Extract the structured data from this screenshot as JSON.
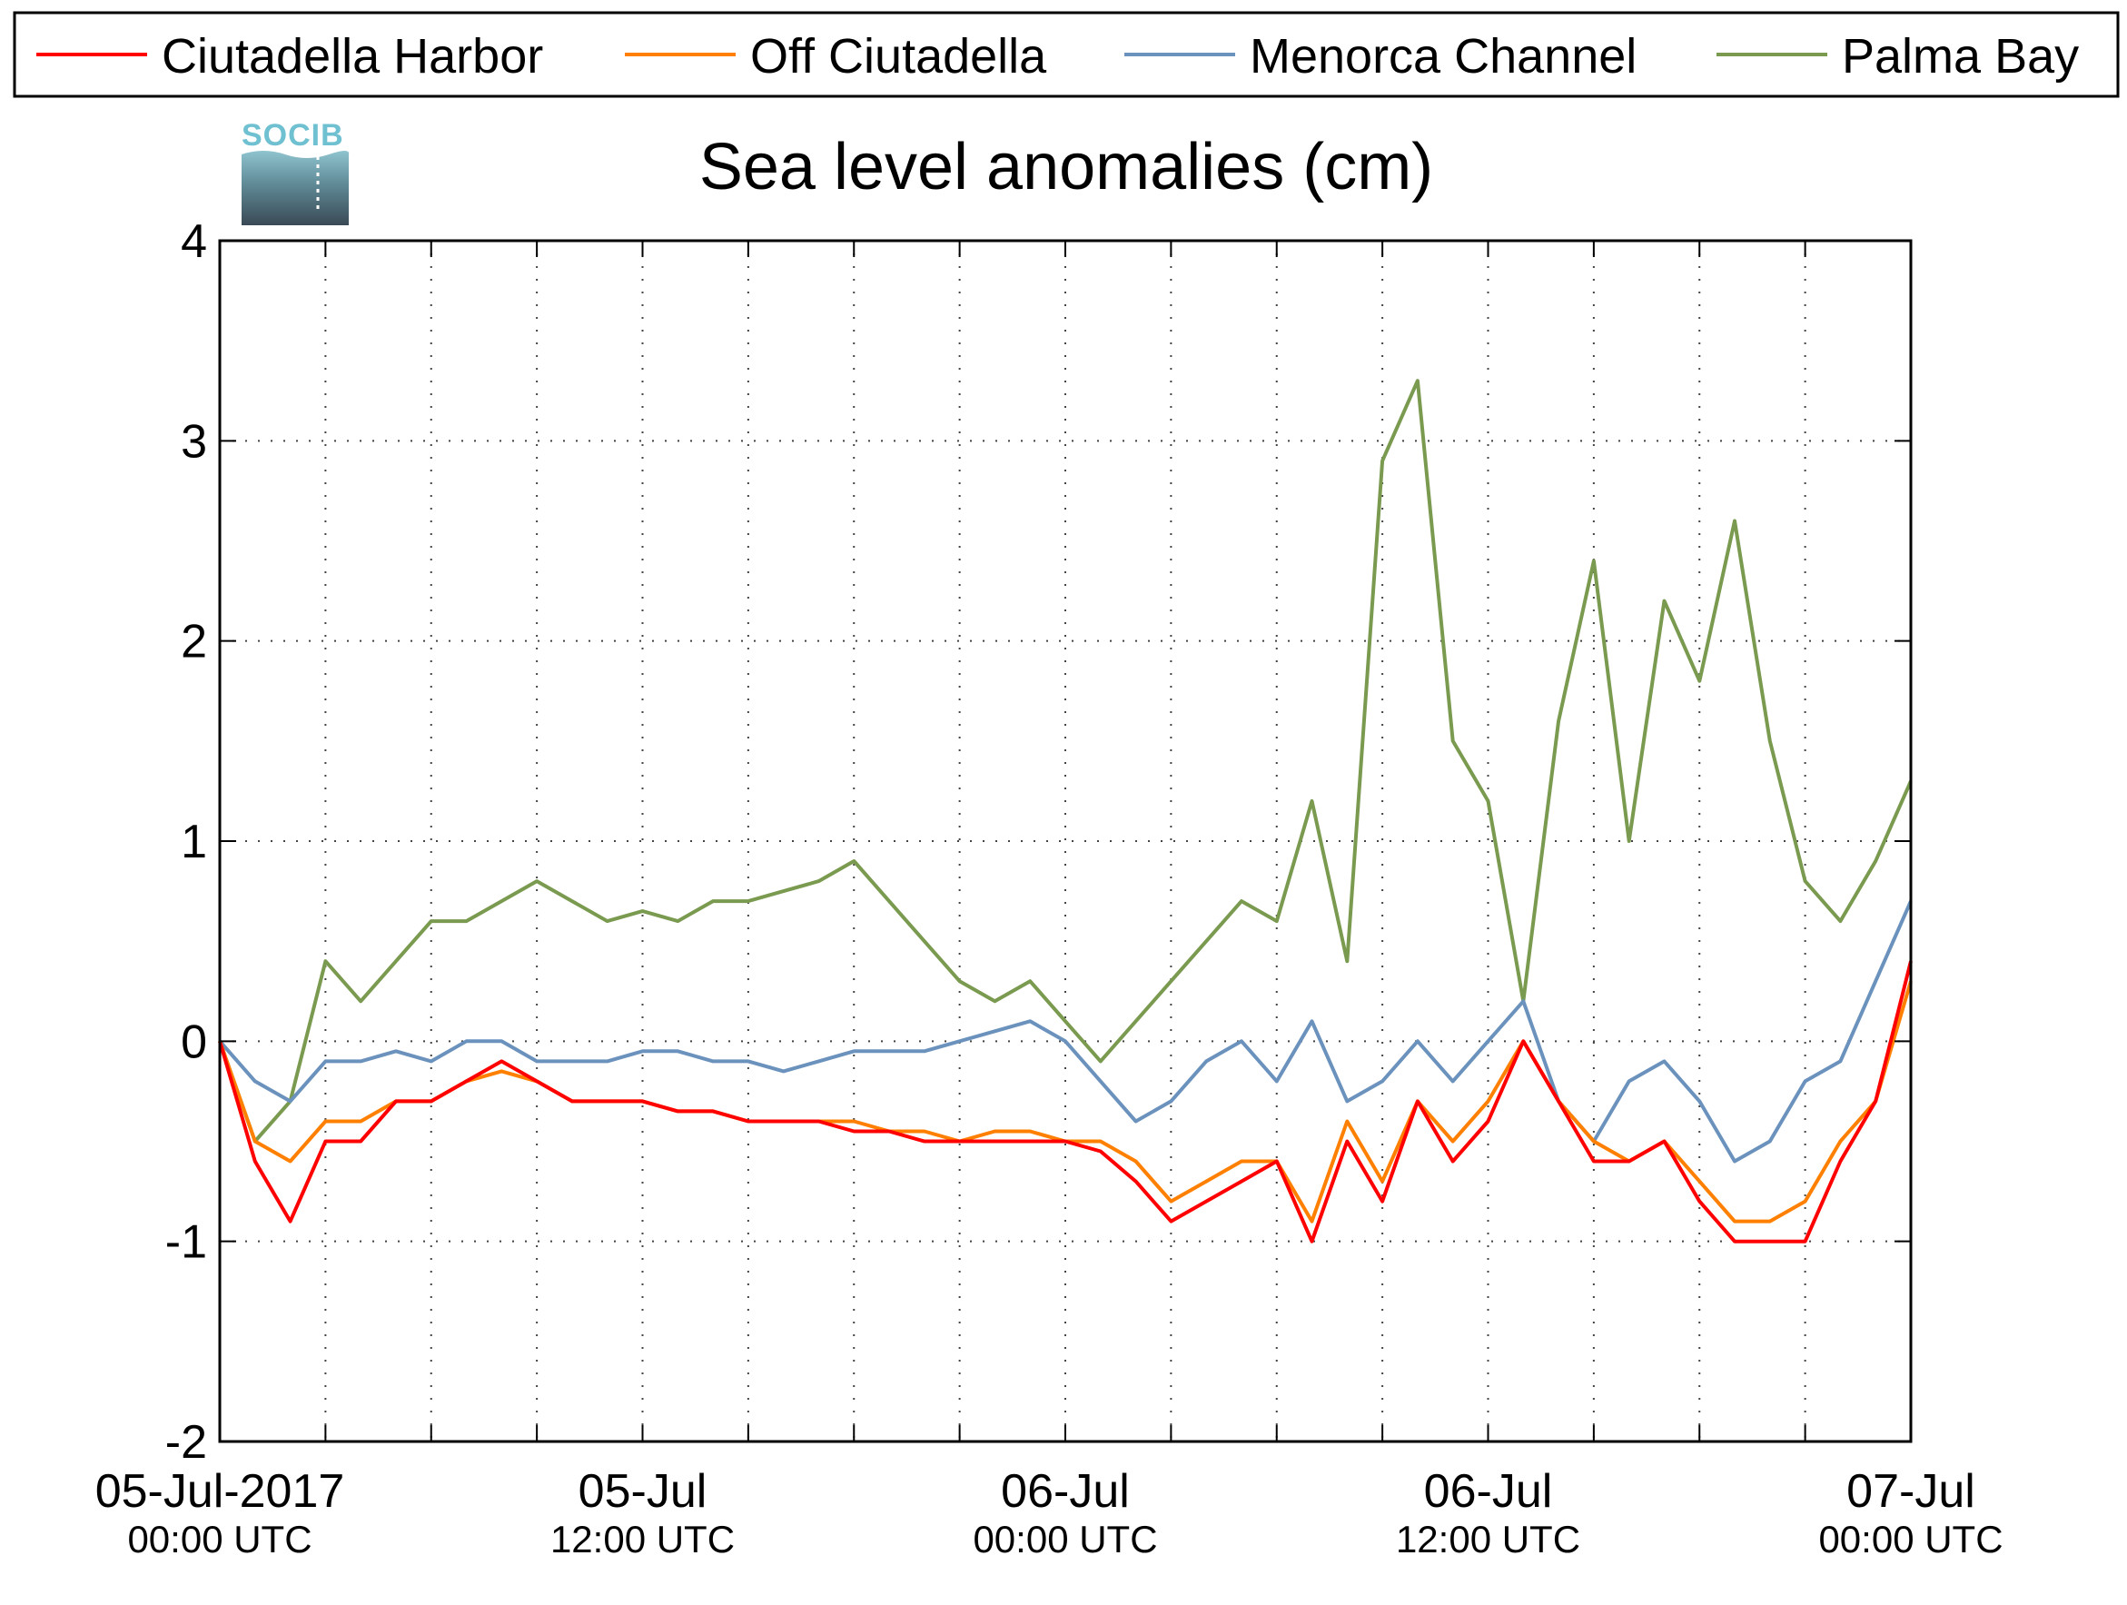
{
  "chart_data": {
    "type": "line",
    "title": "Sea level anomalies (cm)",
    "xlabel": "",
    "ylabel": "",
    "x_range": [
      "2017-07-05T00:00 UTC",
      "2017-07-07T00:00 UTC"
    ],
    "ylim": [
      -2,
      4
    ],
    "y_ticks": [
      4,
      3,
      2,
      1,
      0,
      -1,
      -2
    ],
    "y_tick_labels": [
      "4",
      "3",
      "2",
      "1",
      "0",
      "-1",
      "-2"
    ],
    "x_tick_labels": [
      {
        "main": "05-Jul-2017",
        "sub": "00:00 UTC"
      },
      {
        "main": "05-Jul",
        "sub": "12:00 UTC"
      },
      {
        "main": "06-Jul",
        "sub": "00:00 UTC"
      },
      {
        "main": "06-Jul",
        "sub": "12:00 UTC"
      },
      {
        "main": "07-Jul",
        "sub": "00:00 UTC"
      }
    ],
    "grid": true,
    "legend_position": "top",
    "x_hours": [
      0,
      1,
      2,
      3,
      4,
      5,
      6,
      7,
      8,
      9,
      10,
      11,
      12,
      13,
      14,
      15,
      16,
      17,
      18,
      19,
      20,
      21,
      22,
      23,
      24,
      25,
      26,
      27,
      28,
      29,
      30,
      31,
      32,
      33,
      34,
      35,
      36,
      37,
      38,
      39,
      40,
      41,
      42,
      43,
      44,
      45,
      46,
      47,
      48
    ],
    "series": [
      {
        "name": "Ciutadella Harbor",
        "color": "#ff0000",
        "values": [
          0.0,
          -0.6,
          -0.9,
          -0.5,
          -0.5,
          -0.3,
          -0.3,
          -0.2,
          -0.1,
          -0.2,
          -0.3,
          -0.3,
          -0.3,
          -0.35,
          -0.35,
          -0.4,
          -0.4,
          -0.4,
          -0.45,
          -0.45,
          -0.5,
          -0.5,
          -0.5,
          -0.5,
          -0.5,
          -0.55,
          -0.7,
          -0.9,
          -0.8,
          -0.7,
          -0.6,
          -1.0,
          -0.5,
          -0.8,
          -0.3,
          -0.6,
          -0.4,
          0.0,
          -0.3,
          -0.6,
          -0.6,
          -0.5,
          -0.8,
          -1.0,
          -1.0,
          -1.0,
          -0.6,
          -0.3,
          0.4
        ]
      },
      {
        "name": "Off Ciutadella",
        "color": "#ff8000",
        "values": [
          0.0,
          -0.5,
          -0.6,
          -0.4,
          -0.4,
          -0.3,
          -0.3,
          -0.2,
          -0.15,
          -0.2,
          -0.3,
          -0.3,
          -0.3,
          -0.35,
          -0.35,
          -0.4,
          -0.4,
          -0.4,
          -0.4,
          -0.45,
          -0.45,
          -0.5,
          -0.45,
          -0.45,
          -0.5,
          -0.5,
          -0.6,
          -0.8,
          -0.7,
          -0.6,
          -0.6,
          -0.9,
          -0.4,
          -0.7,
          -0.3,
          -0.5,
          -0.3,
          0.0,
          -0.3,
          -0.5,
          -0.6,
          -0.5,
          -0.7,
          -0.9,
          -0.9,
          -0.8,
          -0.5,
          -0.3,
          0.3
        ]
      },
      {
        "name": "Menorca Channel",
        "color": "#6a92bd",
        "values": [
          0.0,
          -0.2,
          -0.3,
          -0.1,
          -0.1,
          -0.05,
          -0.1,
          0.0,
          0.0,
          -0.1,
          -0.1,
          -0.1,
          -0.05,
          -0.05,
          -0.1,
          -0.1,
          -0.15,
          -0.1,
          -0.05,
          -0.05,
          -0.05,
          0.0,
          0.05,
          0.1,
          0.0,
          -0.2,
          -0.4,
          -0.3,
          -0.1,
          0.0,
          -0.2,
          0.1,
          -0.3,
          -0.2,
          0.0,
          -0.2,
          0.0,
          0.2,
          -0.3,
          -0.5,
          -0.2,
          -0.1,
          -0.3,
          -0.6,
          -0.5,
          -0.2,
          -0.1,
          0.3,
          0.7
        ]
      },
      {
        "name": "Palma Bay",
        "color": "#7a9a50",
        "values": [
          0.0,
          -0.5,
          -0.3,
          0.4,
          0.2,
          0.4,
          0.6,
          0.6,
          0.7,
          0.8,
          0.7,
          0.6,
          0.65,
          0.6,
          0.7,
          0.7,
          0.75,
          0.8,
          0.9,
          0.7,
          0.5,
          0.3,
          0.2,
          0.3,
          0.1,
          -0.1,
          0.1,
          0.3,
          0.5,
          0.7,
          0.6,
          1.2,
          0.4,
          2.9,
          3.3,
          1.5,
          1.2,
          0.2,
          1.6,
          2.4,
          1.0,
          2.2,
          1.8,
          2.6,
          1.5,
          0.8,
          0.6,
          0.9,
          1.3
        ]
      }
    ]
  },
  "logo": {
    "text": "SOCIB"
  }
}
